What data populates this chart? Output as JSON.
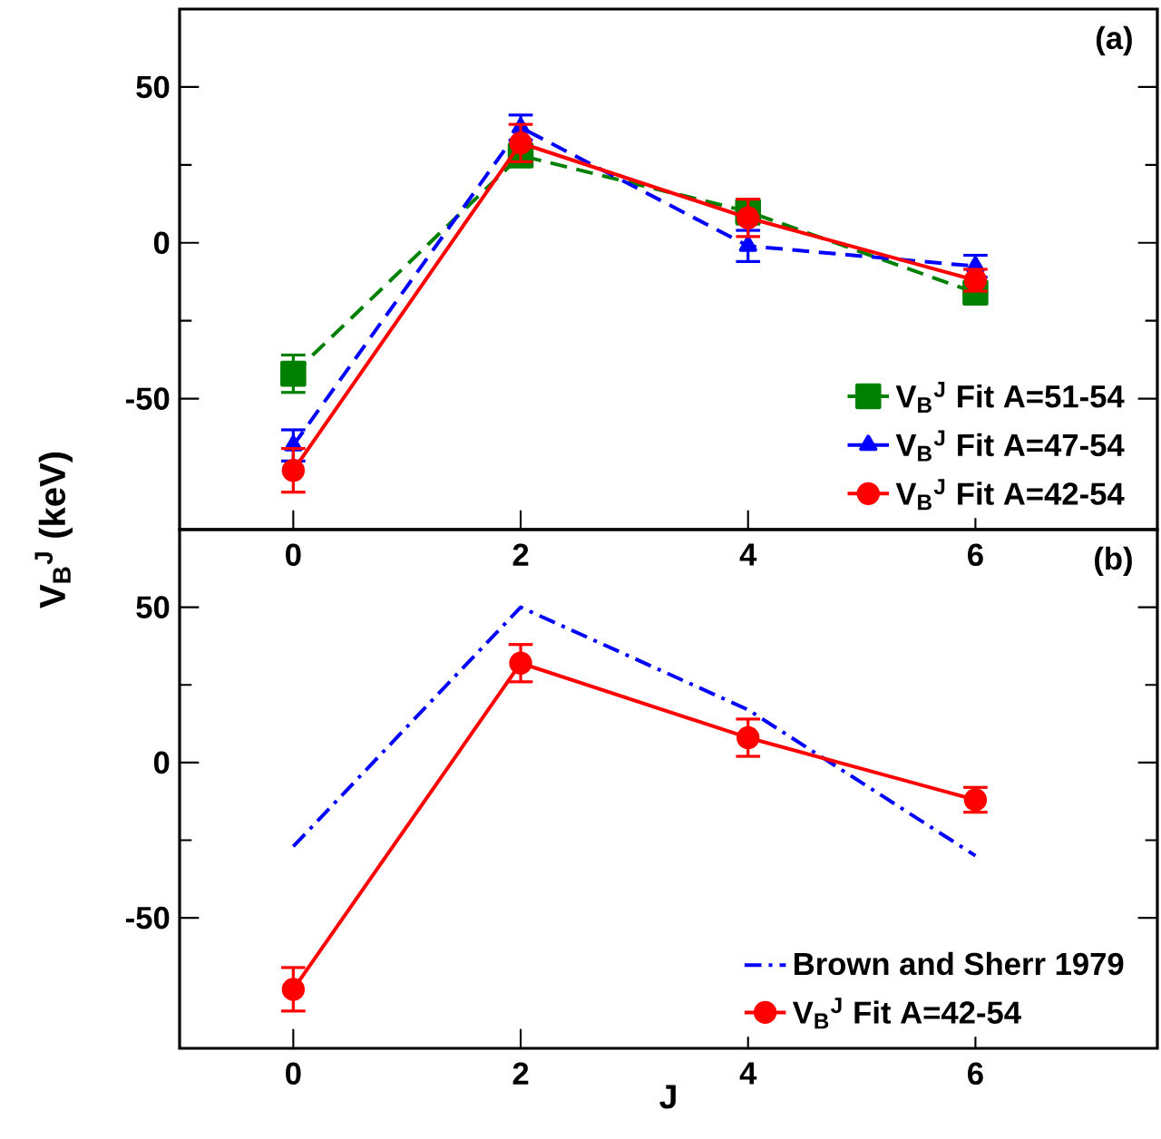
{
  "chart_data": [
    {
      "type": "line",
      "ylabel": "V$_{B}$$^{J}$ (keV)",
      "annotations": [
        "(a)"
      ],
      "x": [
        0,
        2,
        4,
        6
      ],
      "xlim": [
        -1,
        7.6
      ],
      "xticks": [
        0,
        2,
        4,
        6
      ],
      "ylim": [
        -92,
        75
      ],
      "yticks": [
        -50,
        0,
        50
      ],
      "legend": "bottom right",
      "series": [
        {
          "name": "V$_{B}$$^{J}$ Fit A=51-54",
          "color": "#008000",
          "marker": "square",
          "line_style": "dashed",
          "values": [
            -42,
            28,
            10,
            -16
          ],
          "errors": [
            6,
            3,
            4,
            3
          ]
        },
        {
          "name": "V$_{B}$$^{J}$ Fit A=47-54",
          "color": "#0000ff",
          "marker": "triangle",
          "line_style": "dashed",
          "values": [
            -65,
            37,
            -1,
            -7.5
          ],
          "errors": [
            5,
            4,
            5,
            3.5
          ]
        },
        {
          "name": "V$_{B}$$^{J}$ Fit A=42-54",
          "color": "#ff0000",
          "marker": "circle",
          "line_style": "solid",
          "values": [
            -73,
            32,
            8,
            -12
          ],
          "errors": [
            7,
            6,
            6,
            3.5
          ]
        }
      ]
    },
    {
      "type": "line",
      "xlabel": "J",
      "annotations": [
        "(b)"
      ],
      "x": [
        0,
        2,
        4,
        6
      ],
      "xlim": [
        -1,
        7.6
      ],
      "xticks": [
        0,
        2,
        4,
        6
      ],
      "ylim": [
        -92,
        75
      ],
      "yticks": [
        -50,
        0,
        50
      ],
      "legend": "bottom right",
      "series": [
        {
          "name": "Brown and Sherr 1979",
          "color": "#0000ff",
          "marker": "none",
          "line_style": "dashdot",
          "values": [
            -27,
            50,
            17,
            -30
          ]
        },
        {
          "name": "V$_{B}$$^{J}$ Fit A=42-54",
          "color": "#ff0000",
          "marker": "circle",
          "line_style": "solid",
          "values": [
            -73,
            32,
            8,
            -12
          ],
          "errors": [
            7,
            6,
            6,
            4
          ]
        }
      ]
    }
  ]
}
